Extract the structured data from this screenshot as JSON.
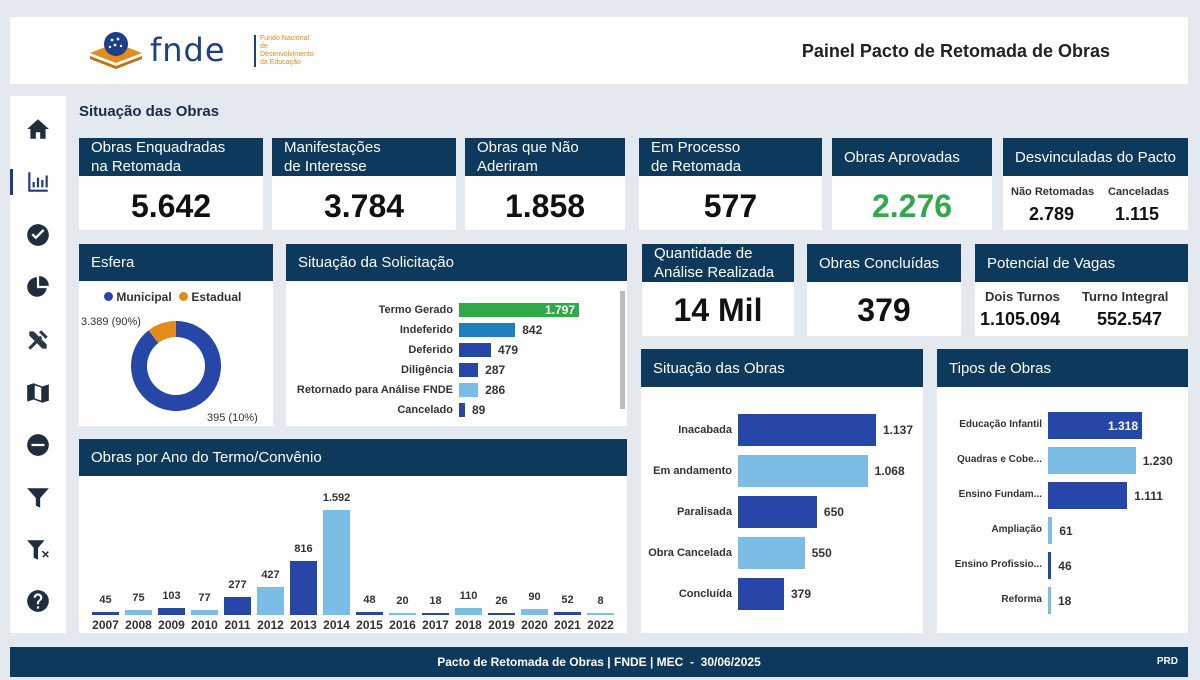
{
  "header": {
    "logo_text": "fnde",
    "logo_sub": [
      "Fundo Nacional",
      "de",
      "Desenvolvimento",
      "da Educação"
    ],
    "title": "Painel Pacto de Retomada de Obras"
  },
  "sidebar": {
    "icons": [
      "home-icon",
      "bar-chart-icon",
      "check-circle-icon",
      "pie-chart-icon",
      "tools-icon",
      "map-icon",
      "minus-circle-icon",
      "filter-icon",
      "filter-clear-icon",
      "help-icon"
    ],
    "active": "bar-chart-icon"
  },
  "section_title": "Situação das Obras",
  "kpis": {
    "enquadradas": {
      "label": [
        "Obras Enquadradas",
        "na Retomada"
      ],
      "value": "5.642"
    },
    "manifestacoes": {
      "label": [
        "Manifestações",
        "de Interesse"
      ],
      "value": "3.784"
    },
    "nao_aderiram": {
      "label": [
        "Obras que Não",
        "Aderiram"
      ],
      "value": "1.858"
    },
    "em_processo": {
      "label": [
        "Em Processo",
        "de Retomada"
      ],
      "value": "577"
    },
    "aprovadas": {
      "label": "Obras Aprovadas",
      "value": "2.276",
      "color": "#2eaa4a"
    },
    "desvinculadas": {
      "label": "Desvinculadas do Pacto",
      "nao_retomadas_label": "Não Retomadas",
      "nao_retomadas_value": "2.789",
      "canceladas_label": "Canceladas",
      "canceladas_value": "1.115"
    },
    "analise": {
      "label": [
        "Quantidade de",
        "Análise Realizada"
      ],
      "value": "14 Mil"
    },
    "concluidas": {
      "label": "Obras Concluídas",
      "value": "379"
    },
    "vagas": {
      "label": "Potencial de Vagas",
      "dois_turnos_label": "Dois Turnos",
      "dois_turnos_value": "1.105.094",
      "turno_integral_label": "Turno Integral",
      "turno_integral_value": "552.547"
    }
  },
  "chart_data": [
    {
      "id": "esfera",
      "type": "pie",
      "title": "Esfera",
      "categories": [
        "Municipal",
        "Estadual"
      ],
      "values": [
        3389,
        395
      ],
      "labels": [
        "3.389 (90%)",
        "395 (10%)"
      ],
      "colors": [
        "#2646a8",
        "#e38b1b"
      ]
    },
    {
      "id": "solicitacao",
      "type": "bar",
      "title": "Situação da Solicitação",
      "categories": [
        "Termo Gerado",
        "Indeferido",
        "Deferido",
        "Diligência",
        "Retornado para Análise FNDE",
        "Cancelado"
      ],
      "values": [
        1797,
        842,
        479,
        287,
        286,
        89
      ],
      "labels": [
        "1.797",
        "842",
        "479",
        "287",
        "286",
        "89"
      ],
      "colors": [
        "#2eaa4a",
        "#1f7fc0",
        "#2646a8",
        "#2646a8",
        "#7cbde6",
        "#2646a8"
      ]
    },
    {
      "id": "ano",
      "type": "bar",
      "title": "Obras por Ano do Termo/Convênio",
      "categories": [
        "2007",
        "2008",
        "2009",
        "2010",
        "2011",
        "2012",
        "2013",
        "2014",
        "2015",
        "2016",
        "2017",
        "2018",
        "2019",
        "2020",
        "2021",
        "2022"
      ],
      "values": [
        45,
        75,
        103,
        77,
        277,
        427,
        816,
        1592,
        48,
        20,
        18,
        110,
        26,
        90,
        52,
        8
      ],
      "labels": [
        "45",
        "75",
        "103",
        "77",
        "277",
        "427",
        "816",
        "1.592",
        "48",
        "20",
        "18",
        "110",
        "26",
        "90",
        "52",
        "8"
      ],
      "colors": [
        "#2646a8",
        "#7cbde6",
        "#2646a8",
        "#7cbde6",
        "#2646a8",
        "#7cbde6",
        "#2646a8",
        "#7cbde6",
        "#2646a8",
        "#7cbde6",
        "#2646a8",
        "#7cbde6",
        "#2646a8",
        "#7cbde6",
        "#2646a8",
        "#7cbde6"
      ]
    },
    {
      "id": "situacao",
      "type": "bar",
      "title": "Situação das Obras",
      "categories": [
        "Inacabada",
        "Em andamento",
        "Paralisada",
        "Obra Cancelada",
        "Concluída"
      ],
      "values": [
        1137,
        1068,
        650,
        550,
        379
      ],
      "labels": [
        "1.137",
        "1.068",
        "650",
        "550",
        "379"
      ],
      "colors": [
        "#2646a8",
        "#7cbde6",
        "#2646a8",
        "#7cbde6",
        "#2646a8"
      ]
    },
    {
      "id": "tipos",
      "type": "bar",
      "title": "Tipos de Obras",
      "categories": [
        "Educação Infantil",
        "Quadras e Cobe...",
        "Ensino Fundam...",
        "Ampliação",
        "Ensino Profissio...",
        "Reforma"
      ],
      "values": [
        1318,
        1230,
        1111,
        61,
        46,
        18
      ],
      "labels": [
        "1.318",
        "1.230",
        "1.111",
        "61",
        "46",
        "18"
      ],
      "colors": [
        "#2646a8",
        "#7cbde6",
        "#2646a8",
        "#7cbde6",
        "#2646a8",
        "#7cbde6"
      ]
    }
  ],
  "footer": {
    "text": "Pacto de Retomada de Obras | FNDE | MEC  -  30/06/2025",
    "env": "PRD"
  }
}
